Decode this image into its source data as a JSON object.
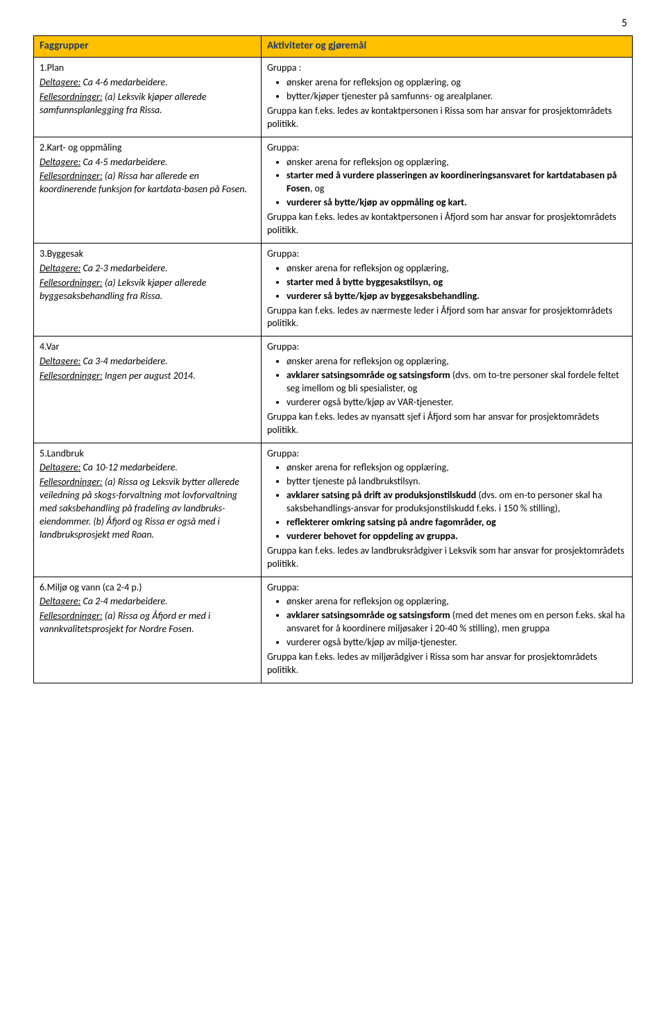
{
  "page_number": "5",
  "headers": {
    "left": "Faggrupper",
    "right": "Aktiviteter og gjøremål"
  },
  "colors": {
    "header_bg": "#ffc000",
    "header_text": "#1f3864",
    "border": "#000000",
    "body_text": "#000000"
  },
  "rows": [
    {
      "left": {
        "title_prefix": "1.Plan",
        "deltagere_label": "Deltagere:",
        "deltagere_value": " Ca 4-6 medarbeidere.",
        "felles_label": "Fellesordninger:",
        "felles_value": " (a) Leksvik kjøper allerede samfunnsplanlegging fra Rissa."
      },
      "right": {
        "intro": "Gruppa :",
        "bullets": [
          {
            "text": "ønsker arena for refleksjon og opplæring, og",
            "bold": false
          },
          {
            "text": "bytter/kjøper tjenester på samfunns- og arealplaner.",
            "bold": false
          }
        ],
        "tail": "Gruppa kan f.eks. ledes av kontaktpersonen i Rissa som har ansvar for prosjektområdets politikk."
      }
    },
    {
      "left": {
        "title_prefix": "2.Kart- og oppmåling",
        "deltagere_label": "Deltagere:",
        "deltagere_value": " Ca 4-5 medarbeidere.",
        "felles_label": "Fellesordninger:",
        "felles_value": " (a) Rissa har allerede en koordinerende funksjon for kartdata-basen på Fosen."
      },
      "right": {
        "intro": "Gruppa:",
        "bullets": [
          {
            "text": "ønsker arena for refleksjon og opplæring,",
            "bold": false
          },
          {
            "text": "starter med å vurdere plasseringen av koordineringsansvaret for kartdatabasen på Fosen",
            "tail": ", og",
            "bold": true
          },
          {
            "text": "vurderer så bytte/kjøp av oppmåling og kart.",
            "bold": true
          }
        ],
        "tail": "Gruppa kan f.eks. ledes av kontaktpersonen i Åfjord som har ansvar for prosjektområdets politikk."
      }
    },
    {
      "left": {
        "title_prefix": "3.Byggesak",
        "deltagere_label": "Deltagere:",
        "deltagere_value": " Ca 2-3 medarbeidere.",
        "felles_label": "Fellesordninger:",
        "felles_value": " (a) Leksvik kjøper allerede byggesaksbehandling fra Rissa."
      },
      "right": {
        "intro": "Gruppa:",
        "bullets": [
          {
            "text": "ønsker arena for refleksjon og opplæring,",
            "bold": false
          },
          {
            "text": "starter med å bytte byggesakstilsyn, og",
            "bold": true
          },
          {
            "text": "vurderer så bytte/kjøp av byggesaksbehandling.",
            "bold": true
          }
        ],
        "tail": "Gruppa kan f.eks. ledes av nærmeste leder i Åfjord som har ansvar for prosjektområdets politikk."
      }
    },
    {
      "left": {
        "title_prefix": "4.Var",
        "deltagere_label": "Deltagere:",
        "deltagere_value": " Ca 3-4 medarbeidere.",
        "felles_label": "Fellesordninger:",
        "felles_value": " Ingen per august 2014."
      },
      "right": {
        "intro": "Gruppa:",
        "bullets": [
          {
            "text": "ønsker arena for refleksjon og opplæring,",
            "bold": false
          },
          {
            "text": "avklarer satsingsområde og satsingsform",
            "bold": true,
            "tail_plain": " (dvs. om to-tre personer skal fordele feltet seg imellom og bli spesialister, og"
          },
          {
            "text": "vurderer også bytte/kjøp av VAR-tjenester.",
            "bold": false
          }
        ],
        "tail": "Gruppa kan f.eks. ledes av nyansatt sjef i Åfjord som har ansvar for prosjektområdets politikk."
      }
    },
    {
      "left": {
        "title_prefix": "5.Landbruk",
        "deltagere_label": "Deltagere:",
        "deltagere_value": " Ca 10-12 medarbeidere.",
        "felles_label": "Fellesordninger:",
        "felles_value": " (a) Rissa og Leksvik bytter allerede veiledning på skogs-forvaltning mot lovforvaltning med saksbehandling på fradeling av landbruks-eiendommer. (b) Åfjord og Rissa er også med i landbruksprosjekt med Roan."
      },
      "right": {
        "intro": "Gruppa:",
        "bullets": [
          {
            "text": "ønsker arena for refleksjon og opplæring,",
            "bold": false
          },
          {
            "text": "bytter tjeneste på landbrukstilsyn.",
            "bold": false
          },
          {
            "text": "avklarer satsing på drift av produksjonstilskudd",
            "bold": true,
            "tail_plain": " (dvs. om en-to personer skal ha saksbehandlings-ansvar for produksjonstilskudd f.eks. i 150 % stilling),"
          },
          {
            "text": "reflekterer omkring satsing på andre fagområder, og",
            "bold": true
          },
          {
            "text": "vurderer behovet for oppdeling av gruppa.",
            "bold": true
          }
        ],
        "tail": "Gruppa kan f.eks. ledes av landbruksrådgiver i Leksvik som har ansvar for prosjektområdets politikk."
      }
    },
    {
      "left": {
        "title_prefix": "6.Miljø og vann",
        "title_suffix": " (ca 2-4 p.)",
        "deltagere_label": "Deltagere:",
        "deltagere_value": " Ca 2-4 medarbeidere.",
        "felles_label": "Fellesordninger:",
        "felles_value": " (a) Rissa og Åfjord er med i vannkvalitetsprosjekt for Nordre Fosen."
      },
      "right": {
        "intro": "Gruppa:",
        "bullets": [
          {
            "text": "ønsker arena for refleksjon og opplæring,",
            "bold": false
          },
          {
            "text": "avklarer satsingsområde og satsingsform",
            "bold": true,
            "tail_plain": " (med det menes om en person f.eks. skal ha ansvaret for å koordinere miljøsaker i 20-40 % stilling), men gruppa"
          },
          {
            "text": "vurderer også bytte/kjøp av miljø-tjenester.",
            "bold": false
          }
        ],
        "tail": "Gruppa kan f.eks. ledes av miljørådgiver i Rissa som har ansvar for prosjektområdets politikk."
      }
    }
  ]
}
